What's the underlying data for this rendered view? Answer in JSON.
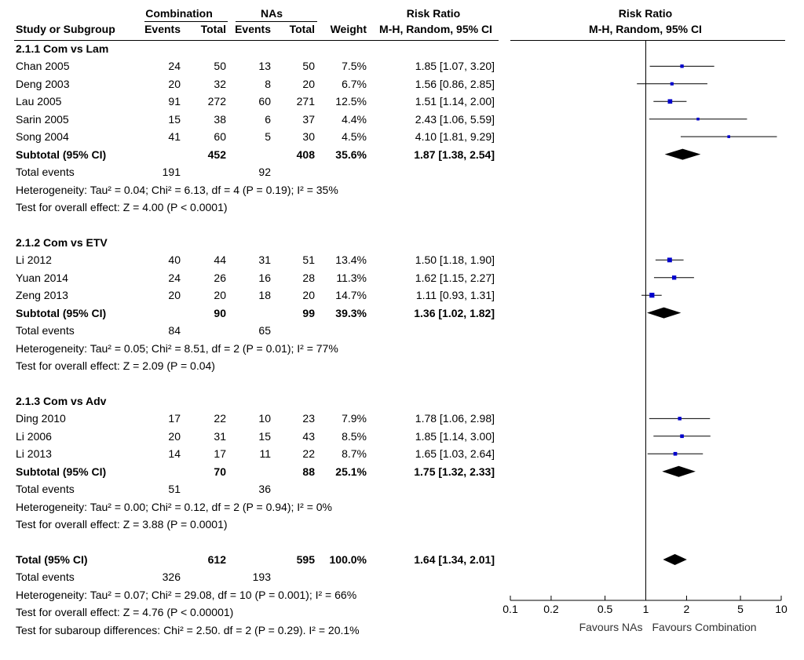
{
  "header": {
    "group1": "Combination",
    "group2": "NAs",
    "rr_col_title": "Risk Ratio",
    "rr_col_method": "M-H, Random, 95% CI",
    "study_col": "Study or Subgroup",
    "events": "Events",
    "total": "Total",
    "weight": "Weight"
  },
  "subgroups": [
    {
      "title": "2.1.1 Com vs Lam",
      "studies": [
        {
          "name": "Chan 2005",
          "e1": "24",
          "t1": "50",
          "e2": "13",
          "t2": "50",
          "weight": "7.5%",
          "ci": "1.85 [1.07, 3.20]"
        },
        {
          "name": "Deng 2003",
          "e1": "20",
          "t1": "32",
          "e2": "8",
          "t2": "20",
          "weight": "6.7%",
          "ci": "1.56 [0.86, 2.85]"
        },
        {
          "name": "Lau 2005",
          "e1": "91",
          "t1": "272",
          "e2": "60",
          "t2": "271",
          "weight": "12.5%",
          "ci": "1.51 [1.14, 2.00]"
        },
        {
          "name": "Sarin 2005",
          "e1": "15",
          "t1": "38",
          "e2": "6",
          "t2": "37",
          "weight": "4.4%",
          "ci": "2.43 [1.06, 5.59]"
        },
        {
          "name": "Song 2004",
          "e1": "41",
          "t1": "60",
          "e2": "5",
          "t2": "30",
          "weight": "4.5%",
          "ci": "4.10 [1.81, 9.29]"
        }
      ],
      "subtotal": {
        "label": "Subtotal (95% CI)",
        "t1": "452",
        "t2": "408",
        "weight": "35.6%",
        "ci": "1.87 [1.38, 2.54]"
      },
      "total_events": {
        "label": "Total events",
        "e1": "191",
        "e2": "92"
      },
      "heterogeneity": "Heterogeneity: Tau² = 0.04; Chi² = 6.13, df = 4 (P = 0.19); I² = 35%",
      "overall": "Test for overall effect: Z = 4.00 (P < 0.0001)"
    },
    {
      "title": "2.1.2 Com vs ETV",
      "studies": [
        {
          "name": "Li 2012",
          "e1": "40",
          "t1": "44",
          "e2": "31",
          "t2": "51",
          "weight": "13.4%",
          "ci": "1.50 [1.18, 1.90]"
        },
        {
          "name": "Yuan 2014",
          "e1": "24",
          "t1": "26",
          "e2": "16",
          "t2": "28",
          "weight": "11.3%",
          "ci": "1.62 [1.15, 2.27]"
        },
        {
          "name": "Zeng 2013",
          "e1": "20",
          "t1": "20",
          "e2": "18",
          "t2": "20",
          "weight": "14.7%",
          "ci": "1.11 [0.93, 1.31]"
        }
      ],
      "subtotal": {
        "label": "Subtotal (95% CI)",
        "t1": "90",
        "t2": "99",
        "weight": "39.3%",
        "ci": "1.36 [1.02, 1.82]"
      },
      "total_events": {
        "label": "Total events",
        "e1": "84",
        "e2": "65"
      },
      "heterogeneity": "Heterogeneity: Tau² = 0.05; Chi² = 8.51, df = 2 (P = 0.01); I² = 77%",
      "overall": "Test for overall effect: Z = 2.09 (P = 0.04)"
    },
    {
      "title": "2.1.3 Com vs Adv",
      "studies": [
        {
          "name": "Ding 2010",
          "e1": "17",
          "t1": "22",
          "e2": "10",
          "t2": "23",
          "weight": "7.9%",
          "ci": "1.78 [1.06, 2.98]"
        },
        {
          "name": "Li 2006",
          "e1": "20",
          "t1": "31",
          "e2": "15",
          "t2": "43",
          "weight": "8.5%",
          "ci": "1.85 [1.14, 3.00]"
        },
        {
          "name": "Li 2013",
          "e1": "14",
          "t1": "17",
          "e2": "11",
          "t2": "22",
          "weight": "8.7%",
          "ci": "1.65 [1.03, 2.64]"
        }
      ],
      "subtotal": {
        "label": "Subtotal (95% CI)",
        "t1": "70",
        "t2": "88",
        "weight": "25.1%",
        "ci": "1.75 [1.32, 2.33]"
      },
      "total_events": {
        "label": "Total events",
        "e1": "51",
        "e2": "36"
      },
      "heterogeneity": "Heterogeneity: Tau² = 0.00; Chi² = 0.12, df = 2 (P = 0.94); I² = 0%",
      "overall": "Test for overall effect: Z = 3.88 (P = 0.0001)"
    }
  ],
  "total": {
    "label": "Total (95% CI)",
    "t1": "612",
    "t2": "595",
    "weight": "100.0%",
    "ci": "1.64 [1.34, 2.01]",
    "events_label": "Total events",
    "e1": "326",
    "e2": "193",
    "heterogeneity": "Heterogeneity: Tau² = 0.07; Chi² = 29.08, df = 10 (P = 0.001); I² = 66%",
    "overall": "Test for overall effect: Z = 4.76 (P < 0.00001)",
    "subgroup_diff": "Test for subaroup differences: Chi² = 2.50. df = 2 (P = 0.29). I² = 20.1%"
  },
  "chart_data": {
    "type": "forest",
    "title": "Risk Ratio",
    "subtitle": "M-H, Random, 95% CI",
    "scale": "log",
    "xlim": [
      0.1,
      10
    ],
    "ticks": [
      0.1,
      0.2,
      0.5,
      1,
      2,
      5,
      10
    ],
    "tick_labels": [
      "0.1",
      "0.2",
      "0.5",
      "1",
      "2",
      "5",
      "10"
    ],
    "null_value": 1,
    "left_label": "Favours NAs",
    "right_label": "Favours Combination",
    "studies": [
      {
        "name": "Chan 2005",
        "rr": 1.85,
        "lo": 1.07,
        "hi": 3.2,
        "weight": 7.5
      },
      {
        "name": "Deng 2003",
        "rr": 1.56,
        "lo": 0.86,
        "hi": 2.85,
        "weight": 6.7
      },
      {
        "name": "Lau 2005",
        "rr": 1.51,
        "lo": 1.14,
        "hi": 2.0,
        "weight": 12.5
      },
      {
        "name": "Sarin 2005",
        "rr": 2.43,
        "lo": 1.06,
        "hi": 5.59,
        "weight": 4.4
      },
      {
        "name": "Song 2004",
        "rr": 4.1,
        "lo": 1.81,
        "hi": 9.29,
        "weight": 4.5
      },
      {
        "name": "Li 2012",
        "rr": 1.5,
        "lo": 1.18,
        "hi": 1.9,
        "weight": 13.4
      },
      {
        "name": "Yuan 2014",
        "rr": 1.62,
        "lo": 1.15,
        "hi": 2.27,
        "weight": 11.3
      },
      {
        "name": "Zeng 2013",
        "rr": 1.11,
        "lo": 0.93,
        "hi": 1.31,
        "weight": 14.7
      },
      {
        "name": "Ding 2010",
        "rr": 1.78,
        "lo": 1.06,
        "hi": 2.98,
        "weight": 7.9
      },
      {
        "name": "Li 2006",
        "rr": 1.85,
        "lo": 1.14,
        "hi": 3.0,
        "weight": 8.5
      },
      {
        "name": "Li 2013",
        "rr": 1.65,
        "lo": 1.03,
        "hi": 2.64,
        "weight": 8.7
      }
    ],
    "summaries": [
      {
        "name": "Subtotal 2.1.1",
        "rr": 1.87,
        "lo": 1.38,
        "hi": 2.54
      },
      {
        "name": "Subtotal 2.1.2",
        "rr": 1.36,
        "lo": 1.02,
        "hi": 1.82
      },
      {
        "name": "Subtotal 2.1.3",
        "rr": 1.75,
        "lo": 1.32,
        "hi": 2.33
      },
      {
        "name": "Total",
        "rr": 1.64,
        "lo": 1.34,
        "hi": 2.01
      }
    ],
    "colors": {
      "marker": "#0000cc",
      "line": "#000000",
      "diamond": "#000000"
    }
  }
}
